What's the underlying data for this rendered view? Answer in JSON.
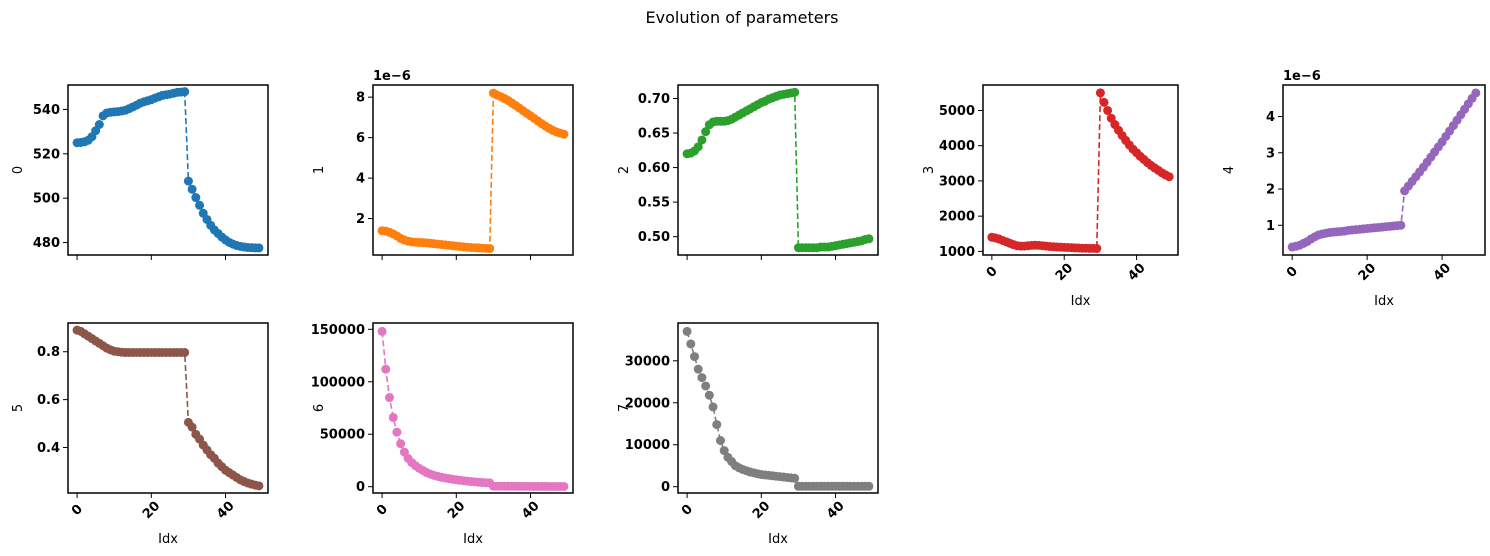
{
  "figure": {
    "title": "Evolution of parameters"
  },
  "chart_data": [
    {
      "type": "line",
      "ylabel": "0",
      "xlabel": "",
      "color": "#1f77b4",
      "xlim": [
        -2.45,
        51.45
      ],
      "ylim": [
        474.4,
        551.0
      ],
      "xticks": [
        0,
        20,
        40
      ],
      "xticklabels": [
        "",
        "",
        ""
      ],
      "yticks": [
        480,
        500,
        520,
        540
      ],
      "yticklabels": [
        "480",
        "500",
        "520",
        "540"
      ],
      "offset_text": "",
      "x": [
        0,
        1,
        2,
        3,
        4,
        5,
        6,
        7,
        8,
        9,
        10,
        11,
        12,
        13,
        14,
        15,
        16,
        17,
        18,
        19,
        20,
        21,
        22,
        23,
        24,
        25,
        26,
        27,
        28,
        29,
        30,
        31,
        32,
        33,
        34,
        35,
        36,
        37,
        38,
        39,
        40,
        41,
        42,
        43,
        44,
        45,
        46,
        47,
        48,
        49
      ],
      "y": [
        525.0,
        525.1,
        525.4,
        526.1,
        527.7,
        530.4,
        533.2,
        537.1,
        538.4,
        538.7,
        538.9,
        539.0,
        539.3,
        539.6,
        540.3,
        541.1,
        541.9,
        542.8,
        543.4,
        543.9,
        544.4,
        545.1,
        545.7,
        546.3,
        546.6,
        546.9,
        547.3,
        547.7,
        547.8,
        548.0,
        507.7,
        504.0,
        500.3,
        496.8,
        493.2,
        490.4,
        487.8,
        485.7,
        484.1,
        482.5,
        481.2,
        480.1,
        479.3,
        478.7,
        478.3,
        478.0,
        477.8,
        477.7,
        477.6,
        477.6
      ]
    },
    {
      "type": "line",
      "ylabel": "1",
      "xlabel": "",
      "color": "#ff7f0e",
      "xlim": [
        -2.45,
        51.45
      ],
      "ylim": [
        2e-07,
        8.6e-06
      ],
      "xticks": [
        0,
        20,
        40
      ],
      "xticklabels": [
        "",
        "",
        ""
      ],
      "yticks": [
        2e-06,
        4e-06,
        6e-06,
        8e-06
      ],
      "yticklabels": [
        "2",
        "4",
        "6",
        "8"
      ],
      "offset_text": "1e−6",
      "x": [
        0,
        1,
        2,
        3,
        4,
        5,
        6,
        7,
        8,
        9,
        10,
        11,
        12,
        13,
        14,
        15,
        16,
        17,
        18,
        19,
        20,
        21,
        22,
        23,
        24,
        25,
        26,
        27,
        28,
        29,
        30,
        31,
        32,
        33,
        34,
        35,
        36,
        37,
        38,
        39,
        40,
        41,
        42,
        43,
        44,
        45,
        46,
        47,
        48,
        49
      ],
      "y": [
        1.4e-06,
        1.38e-06,
        1.32e-06,
        1.24e-06,
        1.14e-06,
        1.02e-06,
        9.4e-07,
        8.8e-07,
        8.5e-07,
        8.3e-07,
        8.2e-07,
        8.1e-07,
        8e-07,
        7.8e-07,
        7.6e-07,
        7.4e-07,
        7.2e-07,
        7e-07,
        6.8e-07,
        6.6e-07,
        6.4e-07,
        6.2e-07,
        6e-07,
        5.8e-07,
        5.7e-07,
        5.6e-07,
        5.5e-07,
        5.4e-07,
        5.3e-07,
        5.2e-07,
        8.2e-06,
        8.1e-06,
        8.02e-06,
        7.93e-06,
        7.83e-06,
        7.71e-06,
        7.59e-06,
        7.46e-06,
        7.33e-06,
        7.2e-06,
        7.08e-06,
        6.95e-06,
        6.82e-06,
        6.69e-06,
        6.57e-06,
        6.46e-06,
        6.36e-06,
        6.28e-06,
        6.22e-06,
        6.17e-06
      ]
    },
    {
      "type": "line",
      "ylabel": "2",
      "xlabel": "",
      "color": "#2ca02c",
      "xlim": [
        -2.45,
        51.45
      ],
      "ylim": [
        0.4735,
        0.7195
      ],
      "xticks": [
        0,
        20,
        40
      ],
      "xticklabels": [
        "",
        "",
        ""
      ],
      "yticks": [
        0.5,
        0.55,
        0.6,
        0.65,
        0.7
      ],
      "yticklabels": [
        "0.50",
        "0.55",
        "0.60",
        "0.65",
        "0.70"
      ],
      "offset_text": "",
      "x": [
        0,
        1,
        2,
        3,
        4,
        5,
        6,
        7,
        8,
        9,
        10,
        11,
        12,
        13,
        14,
        15,
        16,
        17,
        18,
        19,
        20,
        21,
        22,
        23,
        24,
        25,
        26,
        27,
        28,
        29,
        30,
        31,
        32,
        33,
        34,
        35,
        36,
        37,
        38,
        39,
        40,
        41,
        42,
        43,
        44,
        45,
        46,
        47,
        48,
        49
      ],
      "y": [
        0.62,
        0.621,
        0.624,
        0.63,
        0.64,
        0.652,
        0.662,
        0.666,
        0.667,
        0.667,
        0.667,
        0.668,
        0.67,
        0.673,
        0.676,
        0.679,
        0.682,
        0.685,
        0.688,
        0.691,
        0.694,
        0.696,
        0.699,
        0.701,
        0.703,
        0.705,
        0.706,
        0.707,
        0.708,
        0.709,
        0.484,
        0.484,
        0.484,
        0.484,
        0.484,
        0.484,
        0.485,
        0.485,
        0.485,
        0.486,
        0.487,
        0.488,
        0.489,
        0.49,
        0.491,
        0.492,
        0.493,
        0.494,
        0.496,
        0.497
      ]
    },
    {
      "type": "line",
      "ylabel": "3",
      "xlabel": "Idx",
      "color": "#d62728",
      "xlim": [
        -2.45,
        51.45
      ],
      "ylim": [
        897,
        5723
      ],
      "xticks": [
        0,
        20,
        40
      ],
      "xticklabels": [
        "0",
        "20",
        "40"
      ],
      "yticks": [
        1000,
        2000,
        3000,
        4000,
        5000
      ],
      "yticklabels": [
        "1000",
        "2000",
        "3000",
        "4000",
        "5000"
      ],
      "offset_text": "",
      "x": [
        0,
        1,
        2,
        3,
        4,
        5,
        6,
        7,
        8,
        9,
        10,
        11,
        12,
        13,
        14,
        15,
        16,
        17,
        18,
        19,
        20,
        21,
        22,
        23,
        24,
        25,
        26,
        27,
        28,
        29,
        30,
        31,
        32,
        33,
        34,
        35,
        36,
        37,
        38,
        39,
        40,
        41,
        42,
        43,
        44,
        45,
        46,
        47,
        48,
        49
      ],
      "y": [
        1400,
        1380,
        1350,
        1310,
        1270,
        1230,
        1190,
        1160,
        1150,
        1150,
        1160,
        1170,
        1175,
        1170,
        1160,
        1150,
        1140,
        1130,
        1125,
        1120,
        1115,
        1110,
        1105,
        1100,
        1095,
        1090,
        1090,
        1085,
        1085,
        1080,
        5500,
        5230,
        5000,
        4780,
        4600,
        4440,
        4290,
        4150,
        4020,
        3900,
        3800,
        3700,
        3610,
        3520,
        3440,
        3370,
        3300,
        3230,
        3170,
        3120
      ]
    },
    {
      "type": "line",
      "ylabel": "4",
      "xlabel": "Idx",
      "color": "#9467bd",
      "xlim": [
        -2.45,
        51.45
      ],
      "ylim": [
        1.8e-07,
        4.87e-06
      ],
      "xticks": [
        0,
        20,
        40
      ],
      "xticklabels": [
        "0",
        "20",
        "40"
      ],
      "yticks": [
        1e-06,
        2e-06,
        3e-06,
        4e-06
      ],
      "yticklabels": [
        "1",
        "2",
        "3",
        "4"
      ],
      "offset_text": "1e−6",
      "x": [
        0,
        1,
        2,
        3,
        4,
        5,
        6,
        7,
        8,
        9,
        10,
        11,
        12,
        13,
        14,
        15,
        16,
        17,
        18,
        19,
        20,
        21,
        22,
        23,
        24,
        25,
        26,
        27,
        28,
        29,
        30,
        31,
        32,
        33,
        34,
        35,
        36,
        37,
        38,
        39,
        40,
        41,
        42,
        43,
        44,
        45,
        46,
        47,
        48,
        49
      ],
      "y": [
        4e-07,
        4.2e-07,
        4.5e-07,
        5e-07,
        5.5e-07,
        6.2e-07,
        6.8e-07,
        7.3e-07,
        7.6e-07,
        7.8e-07,
        8e-07,
        8.1e-07,
        8.2e-07,
        8.3e-07,
        8.4e-07,
        8.6e-07,
        8.7e-07,
        8.8e-07,
        8.9e-07,
        9e-07,
        9.1e-07,
        9.2e-07,
        9.3e-07,
        9.4e-07,
        9.5e-07,
        9.6e-07,
        9.7e-07,
        9.8e-07,
        9.9e-07,
        1e-06,
        1.95e-06,
        2.08e-06,
        2.21e-06,
        2.34e-06,
        2.47e-06,
        2.6e-06,
        2.74e-06,
        2.88e-06,
        3.02e-06,
        3.16e-06,
        3.3e-06,
        3.45e-06,
        3.6e-06,
        3.75e-06,
        3.9e-06,
        4.05e-06,
        4.2e-06,
        4.35e-06,
        4.5e-06,
        4.65e-06
      ]
    },
    {
      "type": "line",
      "ylabel": "5",
      "xlabel": "Idx",
      "color": "#8c564b",
      "xlim": [
        -2.45,
        51.45
      ],
      "ylim": [
        0.21,
        0.92
      ],
      "xticks": [
        0,
        20,
        40
      ],
      "xticklabels": [
        "0",
        "20",
        "40"
      ],
      "yticks": [
        0.4,
        0.6,
        0.8
      ],
      "yticklabels": [
        "0.4",
        "0.6",
        "0.8"
      ],
      "offset_text": "",
      "x": [
        0,
        1,
        2,
        3,
        4,
        5,
        6,
        7,
        8,
        9,
        10,
        11,
        12,
        13,
        14,
        15,
        16,
        17,
        18,
        19,
        20,
        21,
        22,
        23,
        24,
        25,
        26,
        27,
        28,
        29,
        30,
        31,
        32,
        33,
        34,
        35,
        36,
        37,
        38,
        39,
        40,
        41,
        42,
        43,
        44,
        45,
        46,
        47,
        48,
        49
      ],
      "y": [
        0.89,
        0.885,
        0.875,
        0.865,
        0.855,
        0.845,
        0.835,
        0.825,
        0.815,
        0.808,
        0.802,
        0.8,
        0.798,
        0.797,
        0.797,
        0.797,
        0.797,
        0.797,
        0.797,
        0.797,
        0.797,
        0.797,
        0.797,
        0.797,
        0.797,
        0.797,
        0.797,
        0.797,
        0.797,
        0.797,
        0.505,
        0.485,
        0.455,
        0.435,
        0.41,
        0.39,
        0.37,
        0.355,
        0.335,
        0.32,
        0.305,
        0.295,
        0.285,
        0.275,
        0.265,
        0.258,
        0.252,
        0.247,
        0.243,
        0.24
      ]
    },
    {
      "type": "line",
      "ylabel": "6",
      "xlabel": "Idx",
      "color": "#e377c2",
      "xlim": [
        -2.45,
        51.45
      ],
      "ylim": [
        -6000,
        156000
      ],
      "xticks": [
        0,
        20,
        40
      ],
      "xticklabels": [
        "0",
        "20",
        "40"
      ],
      "yticks": [
        0,
        50000,
        100000,
        150000
      ],
      "yticklabels": [
        "0",
        "50000",
        "100000",
        "150000"
      ],
      "offset_text": "",
      "x": [
        0,
        1,
        2,
        3,
        4,
        5,
        6,
        7,
        8,
        9,
        10,
        11,
        12,
        13,
        14,
        15,
        16,
        17,
        18,
        19,
        20,
        21,
        22,
        23,
        24,
        25,
        26,
        27,
        28,
        29,
        30,
        31,
        32,
        33,
        34,
        35,
        36,
        37,
        38,
        39,
        40,
        41,
        42,
        43,
        44,
        45,
        46,
        47,
        48,
        49
      ],
      "y": [
        148000,
        112000,
        85000,
        66000,
        52000,
        41000,
        33000,
        27000,
        23000,
        20000,
        17500,
        15500,
        13500,
        12000,
        10800,
        9800,
        9000,
        8300,
        7700,
        7100,
        6600,
        6100,
        5700,
        5300,
        4900,
        4600,
        4300,
        4000,
        3800,
        3600,
        500,
        480,
        460,
        440,
        420,
        400,
        380,
        360,
        340,
        320,
        300,
        290,
        280,
        270,
        260,
        250,
        240,
        230,
        220,
        210
      ]
    },
    {
      "type": "line",
      "ylabel": "7",
      "xlabel": "Idx",
      "color": "#7f7f7f",
      "xlim": [
        -2.45,
        51.45
      ],
      "ylim": [
        -1500,
        39000
      ],
      "xticks": [
        0,
        20,
        40
      ],
      "xticklabels": [
        "0",
        "20",
        "40"
      ],
      "yticks": [
        0,
        10000,
        20000,
        30000
      ],
      "yticklabels": [
        "0",
        "10000",
        "20000",
        "30000"
      ],
      "offset_text": "",
      "x": [
        0,
        1,
        2,
        3,
        4,
        5,
        6,
        7,
        8,
        9,
        10,
        11,
        12,
        13,
        14,
        15,
        16,
        17,
        18,
        19,
        20,
        21,
        22,
        23,
        24,
        25,
        26,
        27,
        28,
        29,
        30,
        31,
        32,
        33,
        34,
        35,
        36,
        37,
        38,
        39,
        40,
        41,
        42,
        43,
        44,
        45,
        46,
        47,
        48,
        49
      ],
      "y": [
        37000,
        34000,
        31000,
        28000,
        26000,
        24000,
        21800,
        19000,
        14800,
        11000,
        8600,
        7000,
        6000,
        5000,
        4500,
        4100,
        3800,
        3500,
        3300,
        3100,
        2900,
        2800,
        2700,
        2600,
        2500,
        2400,
        2300,
        2200,
        2100,
        2000,
        100,
        100,
        100,
        100,
        100,
        100,
        100,
        100,
        100,
        100,
        100,
        100,
        100,
        100,
        100,
        100,
        100,
        100,
        100,
        100
      ]
    }
  ]
}
